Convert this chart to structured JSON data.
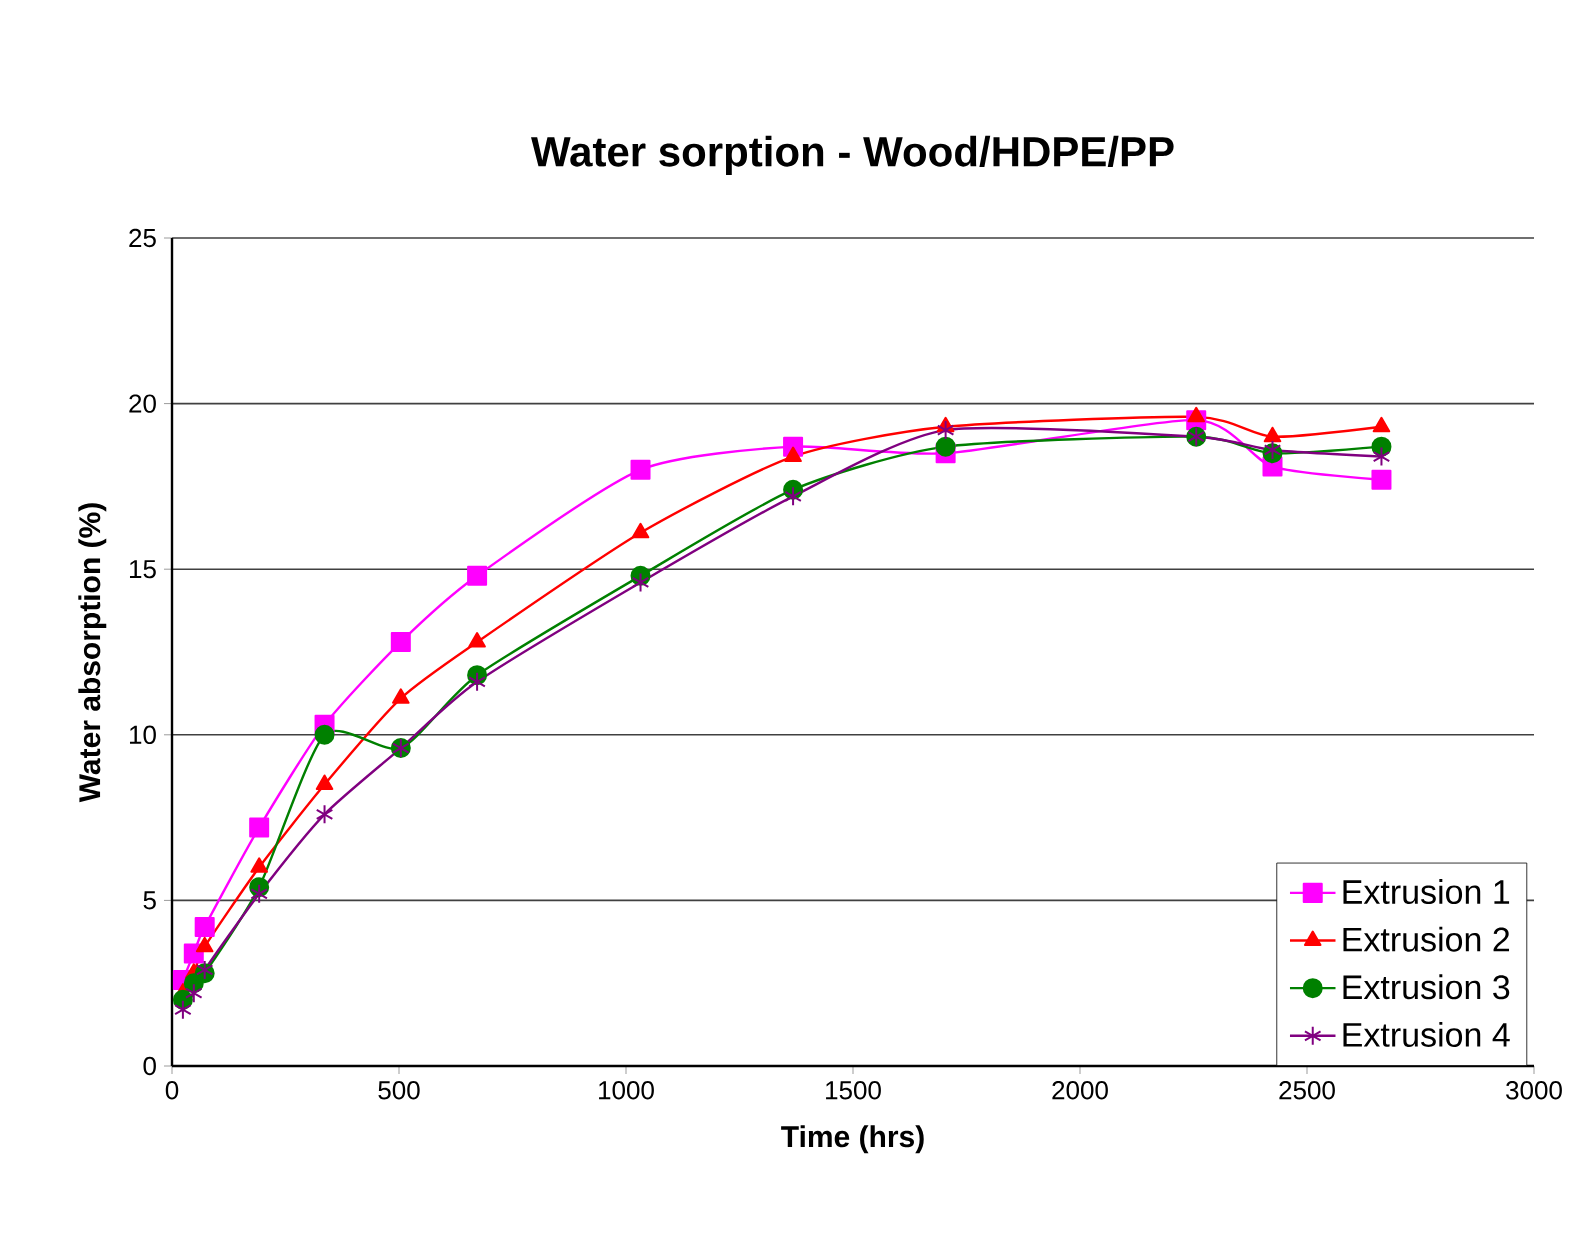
{
  "chart_data": {
    "type": "line",
    "title": "Water sorption - Wood/HDPE/PP",
    "xlabel": "Time (hrs)",
    "ylabel": "Water absorption (%)",
    "x": [
      24,
      48,
      72,
      192,
      336,
      504,
      672,
      1032,
      1368,
      1704,
      2256,
      2424,
      2664
    ],
    "xlim": [
      0,
      3000
    ],
    "xticks": [
      0,
      500,
      1000,
      1500,
      2000,
      2500,
      3000
    ],
    "ylim": [
      0,
      25
    ],
    "yticks": [
      0,
      5,
      10,
      15,
      20,
      25
    ],
    "grid": "y",
    "legend": "bottom right",
    "series": [
      {
        "name": "Extrusion 1",
        "color": "#ff00ff",
        "marker": "square",
        "values": [
          2.6,
          3.4,
          4.2,
          7.2,
          10.3,
          12.8,
          14.8,
          18.0,
          18.7,
          18.5,
          19.5,
          18.1,
          17.7
        ]
      },
      {
        "name": "Extrusion 2",
        "color": "#ff0000",
        "marker": "triangle",
        "values": [
          2.2,
          2.8,
          3.6,
          6.0,
          8.5,
          11.1,
          12.8,
          16.1,
          18.4,
          19.3,
          19.6,
          19.0,
          19.3
        ]
      },
      {
        "name": "Extrusion 3",
        "color": "#008000",
        "marker": "circle",
        "values": [
          2.0,
          2.5,
          2.8,
          5.4,
          10.0,
          9.6,
          11.8,
          14.8,
          17.4,
          18.7,
          19.0,
          18.5,
          18.7
        ]
      },
      {
        "name": "Extrusion 4",
        "color": "#800080",
        "marker": "cross",
        "values": [
          1.7,
          2.2,
          2.9,
          5.2,
          7.6,
          9.6,
          11.6,
          14.6,
          17.2,
          19.2,
          19.0,
          18.6,
          18.4
        ]
      }
    ]
  }
}
